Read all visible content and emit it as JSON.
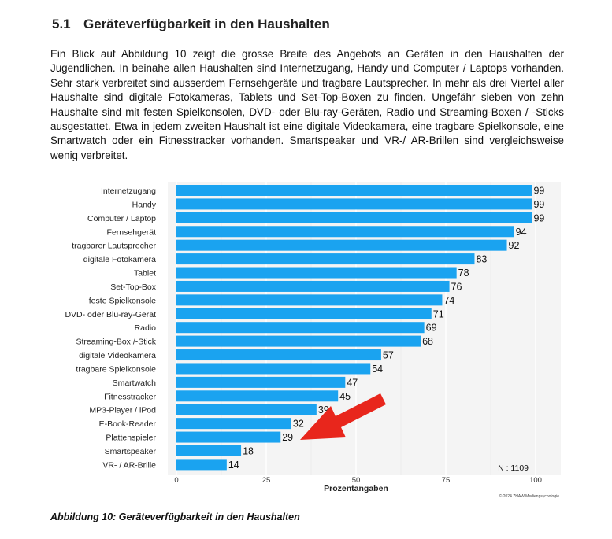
{
  "section": {
    "number": "5.1",
    "title": "Geräteverfügbarkeit in den Haushalten"
  },
  "paragraph": "Ein Blick auf Abbildung 10 zeigt die grosse Breite des Angebots an Geräten in den Haushalten der Jugendlichen. In beinahe allen Haushalten sind Internetzugang, Handy und Computer / Laptops vorhanden. Sehr stark verbreitet sind ausserdem Fernsehgeräte und tragbare Lautsprecher. In mehr als drei Viertel aller Haushalte sind digitale Fotokameras, Tablets und Set-Top-Boxen zu finden. Ungefähr sieben von zehn Haushalte sind mit festen Spielkonsolen, DVD- oder Blu-ray-Geräten, Radio und Streaming-Boxen / -Sticks ausgestattet. Etwa in jedem zweiten Haushalt ist eine digitale Videokamera, eine tragbare Spielkonsole, eine Smartwatch oder ein Fitnesstracker vorhanden. Smartspeaker und VR-/ AR-Brillen sind vergleichsweise wenig verbreitet.",
  "caption": "Abbildung 10: Geräteverfügbarkeit in den Haushalten",
  "chart_data": {
    "type": "bar",
    "orientation": "horizontal",
    "categories": [
      "Internetzugang",
      "Handy",
      "Computer / Laptop",
      "Fernsehgerät",
      "tragbarer Lautsprecher",
      "digitale Fotokamera",
      "Tablet",
      "Set-Top-Box",
      "feste Spielkonsole",
      "DVD- oder Blu-ray-Gerät",
      "Radio",
      "Streaming-Box /-Stick",
      "digitale Videokamera",
      "tragbare Spielkonsole",
      "Smartwatch",
      "Fitnesstracker",
      "MP3-Player / iPod",
      "E-Book-Reader",
      "Plattenspieler",
      "Smartspeaker",
      "VR- / AR-Brille"
    ],
    "values": [
      99,
      99,
      99,
      94,
      92,
      83,
      78,
      76,
      74,
      71,
      69,
      68,
      57,
      54,
      47,
      45,
      39,
      32,
      29,
      18,
      14
    ],
    "xlabel": "Prozentangaben",
    "xlim": [
      0,
      100
    ],
    "xticks": [
      0,
      25,
      50,
      75,
      100
    ],
    "grid": true,
    "annotation": "N : 1109",
    "copyright": "© 2024 ZHAW Medienpsychologie",
    "bar_color": "#1aa3f0",
    "arrow_color": "#e8261c"
  }
}
